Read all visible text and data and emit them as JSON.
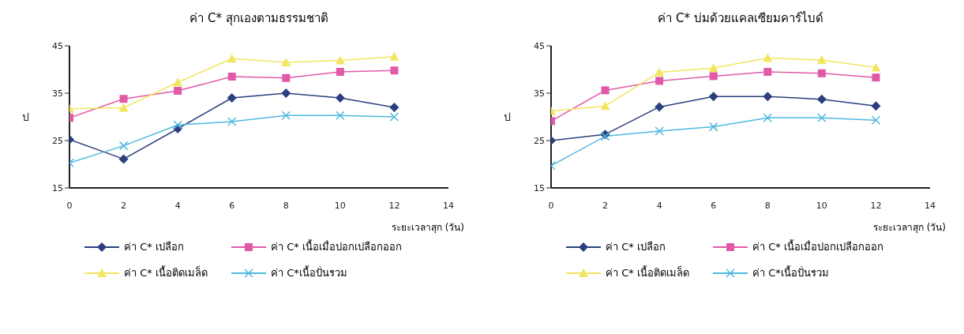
{
  "chart_data": [
    {
      "type": "line",
      "title": "ค่า C* สุกเองตามธรรมชาติ",
      "xlabel": "ระยะเวลาสุก (วัน)",
      "ylabel": "ป",
      "x": [
        0,
        2,
        4,
        6,
        8,
        10,
        12
      ],
      "series": [
        {
          "name": "ค่า C* เปลือก",
          "color": "#2b3f7f",
          "marker": "diamond",
          "values": [
            25.2,
            21.1,
            27.5,
            34,
            35,
            34,
            32
          ]
        },
        {
          "name": "ค่า C* เนื้อเมื่อปอกเปลือกออก",
          "color": "#e05aa8",
          "marker": "square",
          "values": [
            29.8,
            33.8,
            35.5,
            38.5,
            38.2,
            39.5,
            39.8
          ]
        },
        {
          "name": "ค่า C* เนื้อติดเมล็ด",
          "color": "#f2e660",
          "marker": "triangle",
          "values": [
            31.7,
            31.9,
            37.3,
            42.3,
            41.5,
            41.9,
            42.7
          ]
        },
        {
          "name": "ค่า C*เนื้อปั่นรวม",
          "color": "#4fb8e0",
          "marker": "cross",
          "values": [
            20.3,
            23.9,
            28.3,
            29,
            30.3,
            30.3,
            30
          ]
        }
      ],
      "xlim": [
        0,
        14
      ],
      "xticks": [
        0,
        2,
        4,
        6,
        8,
        10,
        12,
        14
      ],
      "ylim": [
        15,
        45
      ],
      "yticks": [
        15,
        25,
        35,
        45
      ],
      "grid": false,
      "legend": "bottom"
    },
    {
      "type": "line",
      "title": "ค่า C* บ่มด้วยแคลเซียมคาร์ไบด์",
      "xlabel": "ระยะเวลาสุก (วัน)",
      "ylabel": "ป",
      "x": [
        0,
        2,
        4,
        6,
        8,
        10,
        12
      ],
      "series": [
        {
          "name": "ค่า C* เปลือก",
          "color": "#2b3f7f",
          "marker": "diamond",
          "values": [
            25,
            26.3,
            32.1,
            34.3,
            34.3,
            33.7,
            32.3
          ]
        },
        {
          "name": "ค่า C* เนื้อเมื่อปอกเปลือกออก",
          "color": "#e05aa8",
          "marker": "square",
          "values": [
            29.1,
            35.6,
            37.6,
            38.6,
            39.5,
            39.2,
            38.3
          ]
        },
        {
          "name": "ค่า C* เนื้อติดเมล็ด",
          "color": "#f2e660",
          "marker": "triangle",
          "values": [
            31.2,
            32.3,
            39.4,
            40.3,
            42.4,
            42,
            40.4
          ]
        },
        {
          "name": "ค่า C*เนื้อปั่นรวม",
          "color": "#4fb8e0",
          "marker": "cross",
          "values": [
            19.7,
            25.9,
            27,
            27.9,
            29.8,
            29.8,
            29.3
          ]
        }
      ],
      "xlim": [
        0,
        14
      ],
      "xticks": [
        0,
        2,
        4,
        6,
        8,
        10,
        12,
        14
      ],
      "ylim": [
        15,
        45
      ],
      "yticks": [
        15,
        25,
        35,
        45
      ],
      "grid": false,
      "legend": "bottom"
    }
  ]
}
